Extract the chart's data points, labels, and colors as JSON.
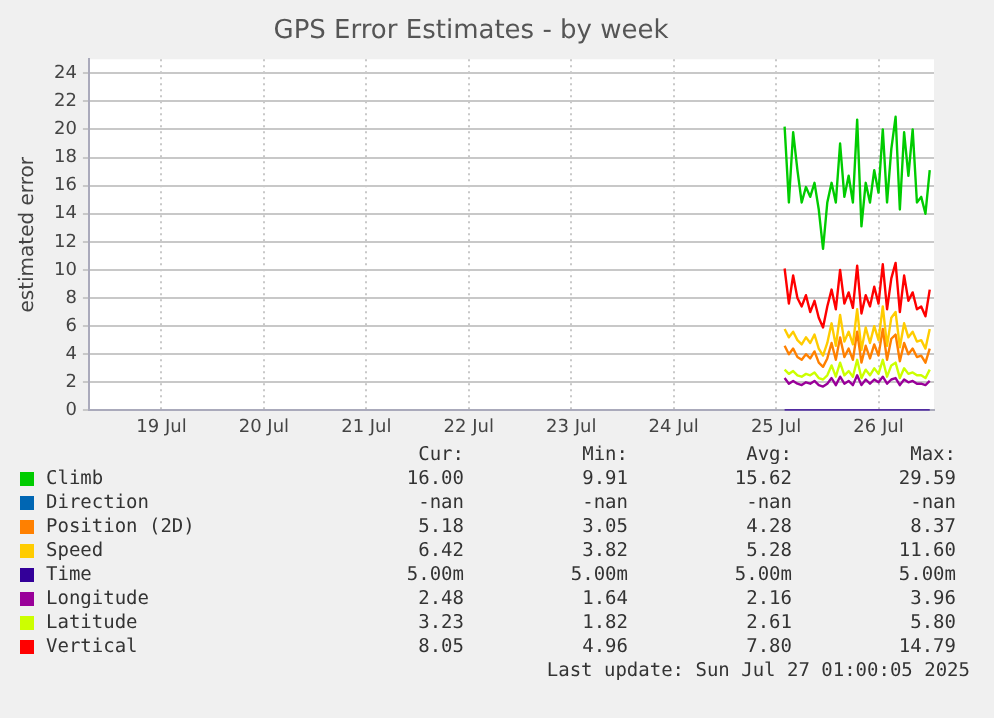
{
  "chart_data": {
    "type": "line",
    "title": "GPS Error Estimates - by week",
    "ylabel": "estimated error",
    "x": [
      "2025-07-25T14:00",
      "2025-07-25T15:00",
      "2025-07-25T16:00",
      "2025-07-25T17:00",
      "2025-07-25T18:00",
      "2025-07-25T19:00",
      "2025-07-25T20:00",
      "2025-07-25T21:00",
      "2025-07-25T22:00",
      "2025-07-25T23:00",
      "2025-07-26T00:00",
      "2025-07-26T01:00",
      "2025-07-26T02:00",
      "2025-07-26T03:00",
      "2025-07-26T04:00",
      "2025-07-26T05:00",
      "2025-07-26T06:00",
      "2025-07-26T07:00",
      "2025-07-26T08:00",
      "2025-07-26T09:00",
      "2025-07-26T10:00",
      "2025-07-26T11:00",
      "2025-07-26T12:00",
      "2025-07-26T13:00",
      "2025-07-26T14:00",
      "2025-07-26T15:00",
      "2025-07-26T16:00",
      "2025-07-26T17:00",
      "2025-07-26T18:00",
      "2025-07-26T19:00",
      "2025-07-26T20:00",
      "2025-07-26T21:00",
      "2025-07-26T22:00",
      "2025-07-26T23:00",
      "2025-07-27T00:00"
    ],
    "series": [
      {
        "name": "Climb",
        "color": "#00cc00",
        "values": [
          20.2,
          14.8,
          19.8,
          17.1,
          14.8,
          15.9,
          15.2,
          16.2,
          14.3,
          11.5,
          14.8,
          16.2,
          14.8,
          19.0,
          15.2,
          16.7,
          14.8,
          20.7,
          13.1,
          16.2,
          14.8,
          17.1,
          15.5,
          20.0,
          14.8,
          18.6,
          20.9,
          14.3,
          19.8,
          16.7,
          20.0,
          14.8,
          15.2,
          14.0,
          17.1
        ]
      },
      {
        "name": "Direction",
        "color": "#0066b3",
        "values": [
          null,
          null,
          null,
          null,
          null,
          null,
          null,
          null,
          null,
          null,
          null,
          null,
          null,
          null,
          null,
          null,
          null,
          null,
          null,
          null,
          null,
          null,
          null,
          null,
          null,
          null,
          null,
          null,
          null,
          null,
          null,
          null,
          null,
          null,
          null
        ]
      },
      {
        "name": "Position (2D)",
        "color": "#ff8000",
        "values": [
          4.6,
          4.0,
          4.4,
          3.8,
          3.6,
          4.0,
          3.7,
          4.2,
          3.4,
          3.1,
          3.7,
          4.8,
          3.6,
          5.2,
          3.8,
          4.4,
          3.6,
          5.6,
          3.4,
          4.6,
          3.7,
          4.7,
          3.9,
          5.8,
          3.6,
          5.1,
          5.4,
          3.5,
          4.8,
          4.0,
          4.4,
          3.8,
          3.9,
          3.4,
          4.4
        ]
      },
      {
        "name": "Speed",
        "color": "#ffcc00",
        "values": [
          5.8,
          5.2,
          5.6,
          5.0,
          4.7,
          5.2,
          4.8,
          5.4,
          4.4,
          3.9,
          4.8,
          6.2,
          4.6,
          6.8,
          4.9,
          5.6,
          4.7,
          7.2,
          4.3,
          5.9,
          4.8,
          6.0,
          5.0,
          7.4,
          4.6,
          6.6,
          7.0,
          4.5,
          6.2,
          5.2,
          5.6,
          4.9,
          5.0,
          4.4,
          5.8
        ]
      },
      {
        "name": "Time",
        "color": "#330099",
        "values": [
          0,
          0,
          0,
          0,
          0,
          0,
          0,
          0,
          0,
          0,
          0,
          0,
          0,
          0,
          0,
          0,
          0,
          0,
          0,
          0,
          0,
          0,
          0,
          0,
          0,
          0,
          0,
          0,
          0,
          0,
          0,
          0,
          0,
          0,
          0
        ]
      },
      {
        "name": "Longitude",
        "color": "#990099",
        "values": [
          2.3,
          1.9,
          2.1,
          1.9,
          1.8,
          2.0,
          1.9,
          2.1,
          1.8,
          1.7,
          1.9,
          2.3,
          1.8,
          2.4,
          1.9,
          2.1,
          1.8,
          2.5,
          1.8,
          2.2,
          1.9,
          2.2,
          2.0,
          2.4,
          1.9,
          2.2,
          2.3,
          1.8,
          2.2,
          2.0,
          2.1,
          1.9,
          1.9,
          1.8,
          2.1
        ]
      },
      {
        "name": "Latitude",
        "color": "#ccff00",
        "values": [
          2.9,
          2.6,
          2.8,
          2.5,
          2.4,
          2.6,
          2.5,
          2.7,
          2.3,
          2.2,
          2.5,
          3.2,
          2.4,
          3.4,
          2.5,
          2.8,
          2.4,
          3.6,
          2.3,
          2.9,
          2.5,
          3.0,
          2.6,
          3.6,
          2.4,
          3.2,
          3.4,
          2.3,
          3.0,
          2.6,
          2.7,
          2.5,
          2.5,
          2.3,
          2.9
        ]
      },
      {
        "name": "Vertical",
        "color": "#ff0000",
        "values": [
          10.1,
          7.6,
          9.6,
          8.0,
          7.4,
          8.2,
          7.0,
          7.8,
          6.6,
          5.9,
          7.4,
          8.6,
          7.2,
          10.0,
          7.6,
          8.4,
          7.3,
          10.3,
          6.9,
          8.2,
          7.4,
          8.8,
          7.6,
          10.4,
          7.2,
          9.4,
          10.5,
          7.0,
          9.6,
          7.8,
          8.4,
          7.2,
          7.4,
          6.7,
          8.6
        ]
      }
    ],
    "xlim": [
      "2025-07-18T19:00",
      "2025-07-27T01:00"
    ],
    "xticks": [
      {
        "value": "2025-07-19T12:00",
        "label": "19 Jul"
      },
      {
        "value": "2025-07-20T12:00",
        "label": "20 Jul"
      },
      {
        "value": "2025-07-21T12:00",
        "label": "21 Jul"
      },
      {
        "value": "2025-07-22T12:00",
        "label": "22 Jul"
      },
      {
        "value": "2025-07-23T12:00",
        "label": "23 Jul"
      },
      {
        "value": "2025-07-24T12:00",
        "label": "24 Jul"
      },
      {
        "value": "2025-07-25T12:00",
        "label": "25 Jul"
      },
      {
        "value": "2025-07-26T12:00",
        "label": "26 Jul"
      }
    ],
    "ylim": [
      0,
      25
    ],
    "yticks": [
      0,
      2,
      4,
      6,
      8,
      10,
      12,
      14,
      16,
      18,
      20,
      22,
      24
    ],
    "grid": true,
    "legend": "bottom",
    "marker": "none",
    "line_style": "solid",
    "annotations": [
      "Cur:",
      "Min:",
      "Avg:",
      "Max:",
      "16.00",
      "9.91",
      "15.62",
      "29.59",
      "-nan",
      "-nan",
      "-nan",
      "-nan",
      "5.18",
      "3.05",
      "4.28",
      "8.37",
      "6.42",
      "3.82",
      "5.28",
      "11.60",
      "5.00m",
      "5.00m",
      "5.00m",
      "5.00m",
      "2.48",
      "1.64",
      "2.16",
      "3.96",
      "3.23",
      "1.82",
      "2.61",
      "5.80",
      "8.05",
      "4.96",
      "7.80",
      "14.79",
      "Last update: Sun Jul 27 01:00:05 2025"
    ]
  }
}
